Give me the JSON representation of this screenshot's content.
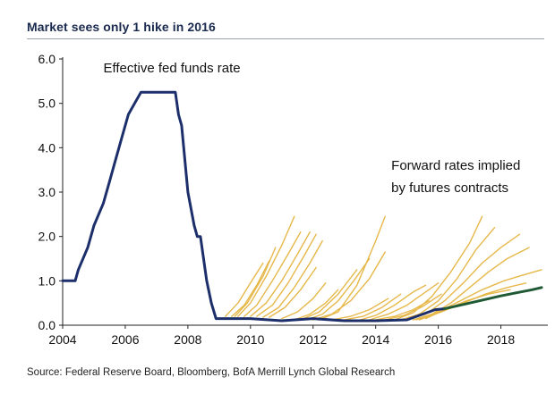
{
  "title": "Market sees only 1 hike in 2016",
  "source": "Source: Federal Reserve Board, Bloomberg, BofA Merrill Lynch Global Research",
  "chart_data": {
    "type": "line",
    "title": "Market sees only 1 hike in 2016",
    "xlabel": "",
    "ylabel": "",
    "xlim": [
      2004,
      2019.5
    ],
    "ylim": [
      0,
      6
    ],
    "x_ticks": [
      "2004",
      "2006",
      "2008",
      "2010",
      "2012",
      "2014",
      "2016",
      "2018"
    ],
    "y_ticks": [
      "0.0",
      "1.0",
      "2.0",
      "3.0",
      "4.0",
      "5.0",
      "6.0"
    ],
    "grid": false,
    "annotations": [
      {
        "text": "Effective fed funds rate",
        "x": 2005.3,
        "y": 5.7
      },
      {
        "text": "Forward rates implied",
        "x": 2014.5,
        "y": 3.5
      },
      {
        "text": "by futures contracts",
        "x": 2014.5,
        "y": 3.0
      }
    ],
    "series": [
      {
        "name": "Effective fed funds rate",
        "color": "#1c2f6b",
        "x": [
          2004.0,
          2004.4,
          2004.5,
          2004.8,
          2005.0,
          2005.3,
          2005.5,
          2005.7,
          2005.9,
          2006.1,
          2006.3,
          2006.5,
          2006.6,
          2007.6,
          2007.7,
          2007.8,
          2008.0,
          2008.2,
          2008.3,
          2008.4,
          2008.6,
          2008.75,
          2008.9,
          2009.0,
          2009.5,
          2010.0,
          2011.0,
          2012.0,
          2013.0,
          2014.0,
          2015.0,
          2015.9,
          2016.2
        ],
        "y": [
          1.0,
          1.0,
          1.25,
          1.75,
          2.25,
          2.75,
          3.25,
          3.75,
          4.25,
          4.75,
          5.0,
          5.25,
          5.25,
          5.25,
          4.75,
          4.5,
          3.0,
          2.25,
          2.0,
          2.0,
          1.0,
          0.5,
          0.15,
          0.15,
          0.15,
          0.15,
          0.1,
          0.15,
          0.1,
          0.1,
          0.12,
          0.35,
          0.37
        ]
      },
      {
        "name": "Market implied path",
        "color": "#1f5a35",
        "x": [
          2016.2,
          2017.0,
          2017.5,
          2018.0,
          2018.5,
          2019.0,
          2019.3
        ],
        "y": [
          0.37,
          0.5,
          0.58,
          0.66,
          0.73,
          0.8,
          0.85
        ]
      }
    ],
    "forward_curves": {
      "color": "#e6b84a",
      "curves": [
        {
          "x": [
            2009.2,
            2009.6,
            2010.0,
            2010.4
          ],
          "y": [
            0.2,
            0.5,
            0.95,
            1.4
          ]
        },
        {
          "x": [
            2009.4,
            2009.8,
            2010.2,
            2010.6
          ],
          "y": [
            0.2,
            0.45,
            0.9,
            1.45
          ]
        },
        {
          "x": [
            2009.5,
            2009.9,
            2010.4,
            2010.8
          ],
          "y": [
            0.2,
            0.5,
            1.1,
            1.75
          ]
        },
        {
          "x": [
            2009.6,
            2010.0,
            2010.5,
            2011.0,
            2011.4
          ],
          "y": [
            0.2,
            0.5,
            1.1,
            1.8,
            2.45
          ]
        },
        {
          "x": [
            2009.8,
            2010.2,
            2010.7,
            2011.2,
            2011.6
          ],
          "y": [
            0.2,
            0.45,
            1.0,
            1.6,
            2.1
          ]
        },
        {
          "x": [
            2010.0,
            2010.5,
            2011.0,
            2011.5,
            2011.9
          ],
          "y": [
            0.2,
            0.5,
            1.0,
            1.6,
            2.1
          ]
        },
        {
          "x": [
            2010.2,
            2010.7,
            2011.2,
            2011.7,
            2012.1
          ],
          "y": [
            0.2,
            0.45,
            0.95,
            1.55,
            2.05
          ]
        },
        {
          "x": [
            2010.4,
            2010.9,
            2011.4,
            2011.9,
            2012.3
          ],
          "y": [
            0.18,
            0.4,
            0.85,
            1.4,
            1.9
          ]
        },
        {
          "x": [
            2010.6,
            2011.1,
            2011.6,
            2012.1
          ],
          "y": [
            0.18,
            0.4,
            0.8,
            1.3
          ]
        },
        {
          "x": [
            2011.0,
            2011.5,
            2012.0,
            2012.4
          ],
          "y": [
            0.15,
            0.3,
            0.6,
            0.95
          ]
        },
        {
          "x": [
            2011.4,
            2011.9,
            2012.4,
            2012.8
          ],
          "y": [
            0.12,
            0.25,
            0.5,
            0.8
          ]
        },
        {
          "x": [
            2011.6,
            2012.2,
            2012.8,
            2013.4
          ],
          "y": [
            0.12,
            0.3,
            0.7,
            1.25
          ]
        },
        {
          "x": [
            2011.8,
            2012.3,
            2012.8,
            2013.3,
            2013.8
          ],
          "y": [
            0.12,
            0.25,
            0.55,
            1.0,
            1.5
          ]
        },
        {
          "x": [
            2012.0,
            2012.6,
            2013.2,
            2013.8,
            2014.3
          ],
          "y": [
            0.12,
            0.25,
            0.55,
            1.05,
            1.65
          ]
        },
        {
          "x": [
            2012.2,
            2012.8,
            2013.4,
            2014.0,
            2014.3
          ],
          "y": [
            0.12,
            0.3,
            0.9,
            1.9,
            2.45
          ]
        },
        {
          "x": [
            2012.6,
            2013.2,
            2013.8,
            2014.4
          ],
          "y": [
            0.12,
            0.2,
            0.35,
            0.6
          ]
        },
        {
          "x": [
            2013.0,
            2013.6,
            2014.2,
            2014.8
          ],
          "y": [
            0.12,
            0.2,
            0.4,
            0.7
          ]
        },
        {
          "x": [
            2013.5,
            2014.0,
            2014.6,
            2015.2,
            2015.6
          ],
          "y": [
            0.12,
            0.22,
            0.45,
            0.75,
            0.9
          ]
        },
        {
          "x": [
            2013.8,
            2014.4,
            2015.0,
            2015.5,
            2016.0
          ],
          "y": [
            0.12,
            0.25,
            0.45,
            0.7,
            0.95
          ]
        },
        {
          "x": [
            2014.0,
            2014.6,
            2015.2,
            2015.7
          ],
          "y": [
            0.12,
            0.2,
            0.35,
            0.55
          ]
        },
        {
          "x": [
            2014.3,
            2014.9,
            2015.5,
            2016.1
          ],
          "y": [
            0.12,
            0.22,
            0.42,
            0.7
          ]
        },
        {
          "x": [
            2014.6,
            2015.2,
            2015.8,
            2016.4,
            2017.0,
            2017.4
          ],
          "y": [
            0.12,
            0.28,
            0.65,
            1.2,
            1.85,
            2.45
          ]
        },
        {
          "x": [
            2014.8,
            2015.4,
            2016.0,
            2016.6,
            2017.2,
            2017.8
          ],
          "y": [
            0.12,
            0.25,
            0.55,
            1.05,
            1.7,
            2.2
          ]
        },
        {
          "x": [
            2015.0,
            2015.6,
            2016.2,
            2016.8,
            2017.4,
            2018.0,
            2018.6
          ],
          "y": [
            0.12,
            0.25,
            0.55,
            0.95,
            1.4,
            1.75,
            2.05
          ]
        },
        {
          "x": [
            2015.2,
            2015.8,
            2016.4,
            2017.0,
            2017.6,
            2018.2,
            2018.9
          ],
          "y": [
            0.12,
            0.25,
            0.5,
            0.85,
            1.2,
            1.5,
            1.75
          ]
        },
        {
          "x": [
            2015.3,
            2016.0,
            2016.7,
            2017.4,
            2018.1,
            2018.8,
            2019.3
          ],
          "y": [
            0.12,
            0.3,
            0.55,
            0.8,
            1.0,
            1.15,
            1.25
          ]
        },
        {
          "x": [
            2015.4,
            2016.1,
            2016.8,
            2017.5,
            2018.2,
            2018.8
          ],
          "y": [
            0.12,
            0.3,
            0.5,
            0.7,
            0.85,
            0.95
          ]
        },
        {
          "x": [
            2015.6,
            2016.2,
            2016.9,
            2017.6,
            2018.3
          ],
          "y": [
            0.15,
            0.35,
            0.55,
            0.7,
            0.8
          ]
        }
      ]
    }
  }
}
